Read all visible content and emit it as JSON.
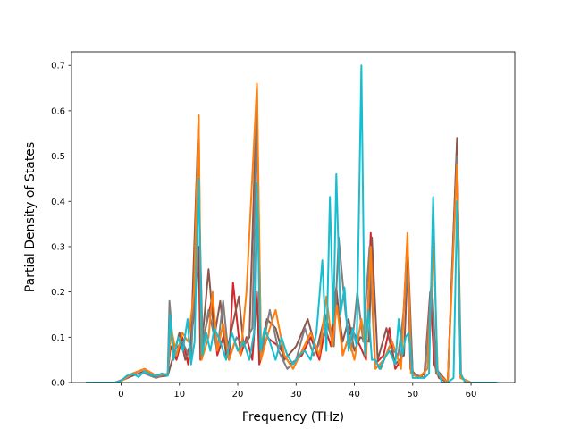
{
  "chart_data": {
    "type": "line",
    "title": "",
    "xlabel": "Frequency (THz)",
    "ylabel": "Partial Density of States",
    "xlim": [
      -8.5,
      67.5
    ],
    "ylim": [
      0.0,
      0.73
    ],
    "xticks": [
      0,
      10,
      20,
      30,
      40,
      50,
      60
    ],
    "xtick_labels": [
      "0",
      "10",
      "20",
      "30",
      "40",
      "50",
      "60"
    ],
    "yticks": [
      0.0,
      0.1,
      0.2,
      0.3,
      0.4,
      0.5,
      0.6,
      0.7
    ],
    "ytick_labels": [
      "0.0",
      "0.1",
      "0.2",
      "0.3",
      "0.4",
      "0.5",
      "0.6",
      "0.7"
    ],
    "grid": false,
    "legend": "none",
    "colors": [
      "#d62728",
      "#8c564b",
      "#7f7f7f",
      "#ff7f0e",
      "#17becf"
    ],
    "series": [
      {
        "color": "#d62728",
        "x": [
          -6,
          -1,
          0,
          2,
          4,
          6,
          8,
          8.5,
          9.5,
          10.5,
          11.5,
          12.5,
          13.3,
          13.6,
          14.5,
          15.5,
          16.5,
          17.5,
          18.5,
          19.2,
          20.5,
          21.5,
          22.5,
          23.3,
          23.7,
          25,
          27,
          29,
          31,
          32.5,
          34,
          35,
          36,
          36.9,
          38,
          39.5,
          41,
          42,
          42.8,
          43.5,
          45,
          46,
          47,
          48,
          49.1,
          49.6,
          51,
          52,
          53,
          53.7,
          54.5,
          56,
          57.6,
          58.2,
          59,
          61,
          64
        ],
        "y": [
          0,
          0,
          0.005,
          0.02,
          0.03,
          0.015,
          0.02,
          0.08,
          0.05,
          0.1,
          0.04,
          0.15,
          0.3,
          0.05,
          0.12,
          0.18,
          0.06,
          0.1,
          0.05,
          0.22,
          0.06,
          0.1,
          0.05,
          0.2,
          0.04,
          0.1,
          0.08,
          0.04,
          0.06,
          0.1,
          0.05,
          0.12,
          0.08,
          0.21,
          0.06,
          0.12,
          0.08,
          0.05,
          0.33,
          0.04,
          0.06,
          0.12,
          0.03,
          0.05,
          0.32,
          0.03,
          0.01,
          0.02,
          0.2,
          0.04,
          0.01,
          0.0,
          0.53,
          0.02,
          0.0,
          0.0,
          0.0
        ]
      },
      {
        "color": "#8c564b",
        "x": [
          -6,
          -1,
          0,
          2,
          4,
          6,
          8,
          9,
          10,
          11,
          12,
          13.3,
          13.7,
          15,
          16,
          17,
          18,
          19,
          20.2,
          21,
          22,
          23.3,
          23.8,
          25,
          26.5,
          28,
          30,
          32,
          33.5,
          35,
          36,
          36.8,
          38,
          39,
          40,
          41,
          42.5,
          43,
          44,
          45.5,
          47,
          48.5,
          49.2,
          50,
          52,
          53.3,
          54,
          56,
          57.6,
          58.2,
          60,
          64
        ],
        "y": [
          0,
          0,
          0.004,
          0.015,
          0.025,
          0.012,
          0.015,
          0.06,
          0.11,
          0.05,
          0.09,
          0.59,
          0.06,
          0.25,
          0.1,
          0.18,
          0.06,
          0.12,
          0.19,
          0.08,
          0.1,
          0.65,
          0.05,
          0.14,
          0.12,
          0.05,
          0.08,
          0.14,
          0.07,
          0.15,
          0.1,
          0.2,
          0.09,
          0.14,
          0.07,
          0.1,
          0.09,
          0.32,
          0.05,
          0.12,
          0.04,
          0.06,
          0.28,
          0.02,
          0.01,
          0.22,
          0.03,
          0.0,
          0.54,
          0.01,
          0.0,
          0.0
        ]
      },
      {
        "color": "#7f7f7f",
        "x": [
          -6,
          -1,
          0,
          2,
          4,
          6,
          8,
          8.3,
          9,
          10.5,
          12,
          13.3,
          14,
          15,
          16.5,
          17.5,
          18.5,
          19.8,
          21,
          22.5,
          23.3,
          24,
          25.5,
          27,
          28.5,
          30,
          31.5,
          33,
          34.5,
          35.5,
          36.5,
          37.3,
          38.5,
          39.5,
          40.5,
          41.5,
          42.6,
          43.5,
          44.5,
          46,
          47.5,
          48.3,
          49.2,
          50,
          52,
          53.2,
          54,
          56,
          57.6,
          58.3,
          60,
          64
        ],
        "y": [
          0,
          0,
          0.004,
          0.018,
          0.02,
          0.01,
          0.02,
          0.18,
          0.07,
          0.09,
          0.05,
          0.44,
          0.08,
          0.16,
          0.07,
          0.18,
          0.05,
          0.1,
          0.08,
          0.12,
          0.62,
          0.06,
          0.16,
          0.07,
          0.03,
          0.05,
          0.12,
          0.06,
          0.1,
          0.13,
          0.08,
          0.32,
          0.15,
          0.07,
          0.2,
          0.09,
          0.3,
          0.05,
          0.03,
          0.08,
          0.06,
          0.14,
          0.25,
          0.02,
          0.01,
          0.22,
          0.02,
          0.0,
          0.5,
          0.01,
          0.0,
          0.0
        ]
      },
      {
        "color": "#ff7f0e",
        "x": [
          -6,
          -1,
          0,
          2,
          4,
          6,
          8,
          8.6,
          9.5,
          10.5,
          11.5,
          12.5,
          13.3,
          13.8,
          15,
          15.7,
          16.5,
          17.5,
          18.5,
          19.5,
          20.5,
          21.5,
          23.3,
          24,
          25,
          26.5,
          28,
          29.5,
          31,
          32.5,
          34,
          35.2,
          36.2,
          37,
          38,
          39,
          40,
          41.2,
          42,
          42.8,
          43.6,
          45,
          46.5,
          48,
          49.1,
          49.7,
          51,
          52.5,
          53.6,
          54.3,
          56,
          57.6,
          58.2,
          60,
          64
        ],
        "y": [
          0,
          0,
          0.003,
          0.02,
          0.03,
          0.015,
          0.02,
          0.12,
          0.06,
          0.11,
          0.09,
          0.2,
          0.59,
          0.05,
          0.1,
          0.2,
          0.07,
          0.13,
          0.05,
          0.09,
          0.06,
          0.2,
          0.66,
          0.05,
          0.1,
          0.16,
          0.06,
          0.03,
          0.07,
          0.11,
          0.06,
          0.19,
          0.08,
          0.17,
          0.06,
          0.1,
          0.05,
          0.14,
          0.06,
          0.3,
          0.03,
          0.05,
          0.09,
          0.03,
          0.33,
          0.02,
          0.01,
          0.03,
          0.3,
          0.02,
          0.0,
          0.48,
          0.01,
          0.0,
          0.0
        ]
      },
      {
        "color": "#17becf",
        "x": [
          -6,
          -1,
          0,
          1,
          2,
          3,
          4,
          5,
          6,
          7,
          8,
          8.4,
          9,
          9.8,
          10.6,
          11.4,
          12,
          12.6,
          13.3,
          13.9,
          14.6,
          15.3,
          16,
          17,
          18,
          19,
          20,
          21,
          22,
          22.8,
          23.3,
          23.9,
          24.6,
          25.5,
          26.5,
          27.5,
          28.5,
          29.5,
          30.5,
          31.5,
          32.5,
          33.5,
          34.5,
          35.2,
          35.8,
          36.4,
          36.9,
          37.6,
          38.3,
          39,
          39.7,
          40.4,
          41.2,
          41.8,
          42.4,
          43,
          43.6,
          44.3,
          45,
          46,
          47,
          47.6,
          48.2,
          48.8,
          49.3,
          50,
          51,
          52,
          52.8,
          53.5,
          54.2,
          55,
          56,
          57,
          57.6,
          58.2,
          59,
          60,
          62,
          64.5
        ],
        "y": [
          0,
          0,
          0.004,
          0.015,
          0.02,
          0.012,
          0.025,
          0.018,
          0.015,
          0.02,
          0.015,
          0.15,
          0.05,
          0.1,
          0.07,
          0.14,
          0.04,
          0.09,
          0.45,
          0.06,
          0.11,
          0.07,
          0.12,
          0.09,
          0.05,
          0.11,
          0.07,
          0.09,
          0.05,
          0.11,
          0.44,
          0.07,
          0.12,
          0.09,
          0.05,
          0.1,
          0.06,
          0.04,
          0.06,
          0.07,
          0.05,
          0.11,
          0.27,
          0.07,
          0.41,
          0.13,
          0.46,
          0.15,
          0.21,
          0.07,
          0.12,
          0.08,
          0.7,
          0.06,
          0.16,
          0.05,
          0.05,
          0.03,
          0.05,
          0.07,
          0.04,
          0.14,
          0.06,
          0.1,
          0.11,
          0.01,
          0.01,
          0.01,
          0.02,
          0.41,
          0.03,
          0.0,
          0.0,
          0.01,
          0.4,
          0.02,
          0.0,
          0.0,
          0.0,
          0.0
        ]
      }
    ]
  }
}
